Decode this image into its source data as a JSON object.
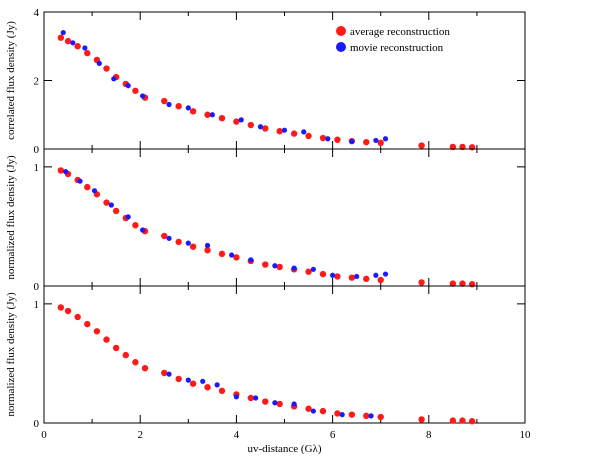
{
  "colors": {
    "average": "#ff1a1a",
    "movie": "#1a1aff",
    "frame": "#000000"
  },
  "chart_data": [
    {
      "type": "scatter",
      "panel": "top",
      "ylabel": "correlated flux density (Jy)",
      "xlabel": "",
      "xlim": [
        0,
        10
      ],
      "ylim": [
        0,
        4
      ],
      "y_ticks": [
        0,
        2,
        4
      ],
      "x_ticks": [
        0,
        2,
        4,
        6,
        8,
        10
      ],
      "show_x_tick_labels": false,
      "legend": {
        "placement": "top-right",
        "entries": [
          "average reconstruction",
          "movie reconstruction"
        ]
      },
      "series": [
        {
          "name": "average reconstruction",
          "color": "#ff1a1a",
          "x": [
            0.35,
            0.5,
            0.7,
            0.9,
            1.1,
            1.3,
            1.5,
            1.7,
            1.9,
            2.1,
            2.5,
            2.8,
            3.1,
            3.4,
            3.7,
            4.0,
            4.3,
            4.6,
            4.9,
            5.2,
            5.5,
            5.8,
            6.1,
            6.4,
            6.7,
            7.0,
            7.85,
            8.5,
            8.7,
            8.9
          ],
          "y": [
            3.25,
            3.15,
            3.0,
            2.8,
            2.6,
            2.35,
            2.1,
            1.9,
            1.7,
            1.5,
            1.4,
            1.25,
            1.1,
            1.0,
            0.9,
            0.8,
            0.7,
            0.6,
            0.52,
            0.45,
            0.38,
            0.32,
            0.27,
            0.23,
            0.2,
            0.18,
            0.1,
            0.06,
            0.06,
            0.05
          ]
        },
        {
          "name": "movie reconstruction",
          "color": "#1a1aff",
          "x": [
            0.4,
            0.6,
            0.85,
            1.15,
            1.45,
            1.75,
            2.05,
            2.6,
            3.0,
            3.5,
            4.1,
            4.5,
            5.0,
            5.4,
            5.9,
            6.4,
            6.9,
            7.1
          ],
          "y": [
            3.4,
            3.1,
            2.95,
            2.5,
            2.05,
            1.85,
            1.55,
            1.3,
            1.2,
            1.0,
            0.85,
            0.65,
            0.55,
            0.5,
            0.3,
            0.22,
            0.25,
            0.3
          ]
        }
      ]
    },
    {
      "type": "scatter",
      "panel": "middle",
      "ylabel": "normalized flux density (Jy)",
      "xlabel": "",
      "xlim": [
        0,
        10
      ],
      "ylim": [
        0,
        1.15
      ],
      "y_ticks": [
        0,
        1
      ],
      "x_ticks": [
        0,
        2,
        4,
        6,
        8,
        10
      ],
      "show_x_tick_labels": false,
      "series": [
        {
          "name": "average reconstruction",
          "color": "#ff1a1a",
          "x": [
            0.35,
            0.5,
            0.7,
            0.9,
            1.1,
            1.3,
            1.5,
            1.7,
            1.9,
            2.1,
            2.5,
            2.8,
            3.1,
            3.4,
            3.7,
            4.0,
            4.3,
            4.6,
            4.9,
            5.2,
            5.5,
            5.8,
            6.1,
            6.4,
            6.7,
            7.0,
            7.85,
            8.5,
            8.7,
            8.9
          ],
          "y": [
            0.97,
            0.94,
            0.89,
            0.83,
            0.77,
            0.7,
            0.63,
            0.57,
            0.51,
            0.46,
            0.42,
            0.37,
            0.33,
            0.3,
            0.27,
            0.24,
            0.21,
            0.18,
            0.16,
            0.14,
            0.12,
            0.1,
            0.08,
            0.07,
            0.06,
            0.05,
            0.03,
            0.02,
            0.02,
            0.015
          ]
        },
        {
          "name": "movie reconstruction",
          "color": "#1a1aff",
          "x": [
            0.45,
            0.75,
            1.05,
            1.4,
            1.75,
            2.05,
            2.6,
            3.0,
            3.4,
            3.9,
            4.3,
            4.8,
            5.2,
            5.6,
            6.0,
            6.5,
            6.9,
            7.1
          ],
          "y": [
            0.96,
            0.88,
            0.8,
            0.68,
            0.58,
            0.47,
            0.4,
            0.36,
            0.34,
            0.26,
            0.22,
            0.17,
            0.15,
            0.14,
            0.09,
            0.08,
            0.09,
            0.1
          ]
        }
      ]
    },
    {
      "type": "scatter",
      "panel": "bottom",
      "ylabel": "normalized flux density (Jy)",
      "xlabel": "uv-distance (Gλ)",
      "xlim": [
        0,
        10
      ],
      "ylim": [
        0,
        1.15
      ],
      "y_ticks": [
        0,
        1
      ],
      "x_ticks": [
        0,
        2,
        4,
        6,
        8,
        10
      ],
      "show_x_tick_labels": true,
      "series": [
        {
          "name": "average reconstruction",
          "color": "#ff1a1a",
          "x": [
            0.35,
            0.5,
            0.7,
            0.9,
            1.1,
            1.3,
            1.5,
            1.7,
            1.9,
            2.1,
            2.5,
            2.8,
            3.1,
            3.4,
            3.7,
            4.0,
            4.3,
            4.6,
            4.9,
            5.2,
            5.5,
            5.8,
            6.1,
            6.4,
            6.7,
            7.0,
            7.85,
            8.5,
            8.7,
            8.9
          ],
          "y": [
            0.97,
            0.94,
            0.89,
            0.83,
            0.77,
            0.7,
            0.63,
            0.57,
            0.51,
            0.46,
            0.42,
            0.37,
            0.33,
            0.3,
            0.27,
            0.24,
            0.21,
            0.18,
            0.16,
            0.14,
            0.12,
            0.1,
            0.08,
            0.07,
            0.06,
            0.05,
            0.03,
            0.02,
            0.02,
            0.015
          ]
        },
        {
          "name": "movie reconstruction",
          "color": "#1a1aff",
          "x": [
            2.6,
            3.0,
            3.3,
            3.6,
            4.0,
            4.4,
            4.8,
            5.2,
            5.6,
            6.2,
            6.8
          ],
          "y": [
            0.41,
            0.36,
            0.35,
            0.32,
            0.22,
            0.21,
            0.17,
            0.16,
            0.1,
            0.07,
            0.06
          ]
        }
      ]
    }
  ]
}
